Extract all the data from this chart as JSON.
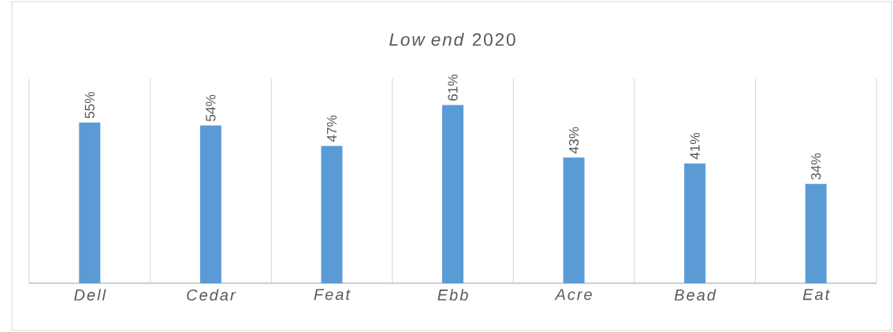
{
  "chart_data": {
    "type": "bar",
    "title": "*Low end* 2020",
    "categories": [
      "Dell",
      "Cedar",
      "Feat",
      "Ebb",
      "Acre",
      "Bead",
      "Eat"
    ],
    "values": [
      55,
      54,
      47,
      61,
      43,
      41,
      34
    ],
    "value_labels": [
      "55%",
      "54%",
      "47%",
      "61%",
      "43%",
      "41%",
      "34%"
    ],
    "color": "#5b9bd5",
    "ylim": [
      0,
      70
    ],
    "grid": "x"
  }
}
